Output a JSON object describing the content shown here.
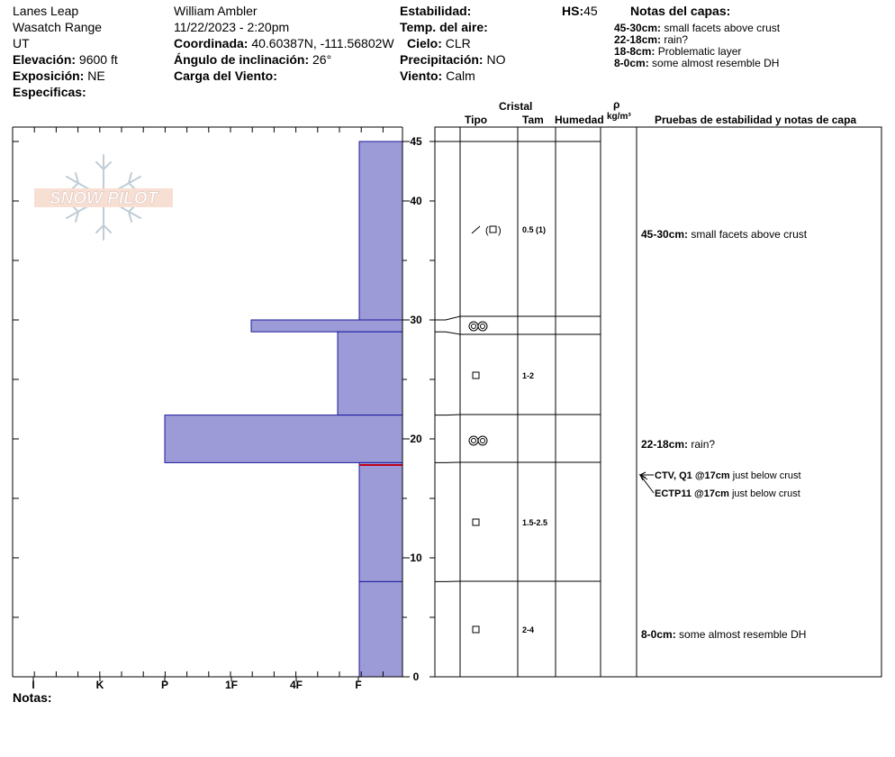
{
  "header": {
    "location": "Lanes Leap",
    "range": "Wasatch Range",
    "state": "UT",
    "elevation_label": "Elevación:",
    "elevation": "9600 ft",
    "aspect_label": "Exposición:",
    "aspect": "NE",
    "specifics_label": "Especificas:",
    "observer": "William Ambler",
    "datetime": "11/22/2023 - 2:20pm",
    "coord_label": "Coordinada:",
    "coord": "40.60387N, -111.56802W",
    "slope_label": "Ángulo de inclinación:",
    "slope": "26°",
    "wind_load_label": "Carga del Viento:",
    "stability_label": "Estabilidad:",
    "air_temp_label": "Temp. del aire:",
    "sky_label": "Cielo:",
    "sky": "CLR",
    "precip_label": "Precipitación:",
    "precip": "NO",
    "wind_label": "Viento:",
    "wind": "Calm",
    "hs_label": "HS:",
    "hs": "45"
  },
  "layer_notes": {
    "title": "Notas del capas:",
    "items": [
      {
        "range": "45-30cm:",
        "text": "small facets above crust"
      },
      {
        "range": "22-18cm:",
        "text": "rain?"
      },
      {
        "range": "18-8cm:",
        "text": "Problematic layer"
      },
      {
        "range": "8-0cm:",
        "text": "some almost resemble DH"
      }
    ]
  },
  "logo_text": "SNOW PILOT",
  "columns": {
    "crystal": "Cristal",
    "type": "Tipo",
    "size": "Tam",
    "moisture": "Humedad",
    "rho": "ρ",
    "density_unit": "kg/m³",
    "tests": "Pruebas de estabilidad y notas de capa"
  },
  "hardness_scale": [
    "I",
    "K",
    "P",
    "1F",
    "4F",
    "F"
  ],
  "depth_ticks": [
    "45",
    "40",
    "30",
    "20",
    "10",
    "0"
  ],
  "notes_label": "Notas:",
  "colors": {
    "hardness_fill": "#9d9ad8",
    "hardness_stroke": "#1c1a9a",
    "weak_layer": "#c0001a"
  },
  "chart_data": {
    "type": "bar",
    "title": "",
    "ylabel": "",
    "xlabel": "",
    "y_unit": "cm",
    "ylim": [
      0,
      46
    ],
    "snow_height": 45,
    "hardness_categories": [
      "F",
      "4F",
      "1F",
      "P",
      "K",
      "I"
    ],
    "layers": [
      {
        "top": 45,
        "bottom": 30,
        "hardness": "F",
        "grain": "/(□)",
        "size": "0.5 (1)"
      },
      {
        "top": 30,
        "bottom": 29,
        "hardness": "1F-",
        "grain": "◎◎",
        "size": ""
      },
      {
        "top": 29,
        "bottom": 22,
        "hardness": "F+",
        "grain": "□",
        "size": "1-2"
      },
      {
        "top": 22,
        "bottom": 18,
        "hardness": "P",
        "grain": "◎◎",
        "size": ""
      },
      {
        "top": 18,
        "bottom": 8,
        "hardness": "F",
        "grain": "□",
        "size": "1.5-2.5"
      },
      {
        "top": 8,
        "bottom": 0,
        "hardness": "F",
        "grain": "□",
        "size": "2-4"
      }
    ],
    "weak_layer_depth": 17.8,
    "layer_notes_right": [
      {
        "depth": 37.5,
        "range": "45-30cm:",
        "text": "small facets above crust"
      },
      {
        "depth": 19.5,
        "range": "22-18cm:",
        "text": "rain?"
      },
      {
        "depth": 3.5,
        "range": "8-0cm:",
        "text": "some almost resemble DH"
      }
    ],
    "tests": [
      {
        "depth": 17,
        "code": "CTV, Q1 @17cm",
        "note": "just below crust"
      },
      {
        "depth": 17,
        "code": "ECTP11 @17cm",
        "note": "just below crust"
      }
    ]
  }
}
